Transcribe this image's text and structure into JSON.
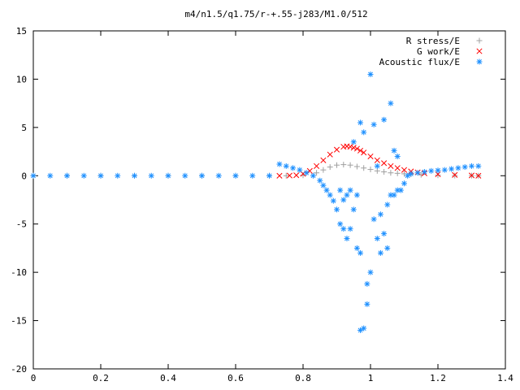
{
  "chart_data": {
    "type": "scatter",
    "title": "m4/n1.5/q1.75/r-+.55-j283/M1.0/512",
    "xlabel": "",
    "ylabel": "",
    "xlim": [
      0,
      1.4
    ],
    "ylim": [
      -20,
      15
    ],
    "x_ticks": [
      "0",
      "0.2",
      "0.4",
      "0.6",
      "0.8",
      "1",
      "1.2",
      "1.4"
    ],
    "y_ticks": [
      "15",
      "10",
      "5",
      "0",
      "-5",
      "-10",
      "-15",
      "-20"
    ],
    "grid": false,
    "legend_position": "top-right",
    "series": [
      {
        "name": "R stress/E",
        "marker": "+",
        "color": "#a0a0a0",
        "x": [
          0.0,
          0.1,
          0.2,
          0.3,
          0.4,
          0.5,
          0.6,
          0.7,
          0.75,
          0.8,
          0.84,
          0.86,
          0.88,
          0.9,
          0.92,
          0.94,
          0.96,
          0.98,
          1.0,
          1.02,
          1.04,
          1.06,
          1.08,
          1.1,
          1.12,
          1.15,
          1.2,
          1.25,
          1.3,
          1.32
        ],
        "y": [
          0.0,
          0.0,
          0.0,
          0.0,
          0.0,
          0.0,
          0.0,
          0.0,
          0.0,
          0.05,
          0.3,
          0.6,
          0.9,
          1.1,
          1.15,
          1.1,
          0.95,
          0.8,
          0.65,
          0.5,
          0.4,
          0.3,
          0.25,
          0.2,
          0.15,
          0.1,
          0.05,
          0.02,
          0.01,
          0.0
        ]
      },
      {
        "name": "G work/E",
        "marker": "x",
        "color": "#ff0000",
        "x": [
          0.73,
          0.76,
          0.78,
          0.8,
          0.82,
          0.84,
          0.86,
          0.88,
          0.9,
          0.92,
          0.93,
          0.94,
          0.95,
          0.96,
          0.97,
          0.98,
          1.0,
          1.02,
          1.04,
          1.06,
          1.08,
          1.1,
          1.12,
          1.14,
          1.16,
          1.2,
          1.25,
          1.3,
          1.32
        ],
        "y": [
          0.0,
          0.02,
          0.05,
          0.2,
          0.5,
          1.0,
          1.6,
          2.2,
          2.7,
          3.0,
          3.05,
          3.0,
          2.9,
          2.8,
          2.6,
          2.4,
          2.0,
          1.6,
          1.3,
          1.0,
          0.8,
          0.6,
          0.45,
          0.35,
          0.25,
          0.15,
          0.08,
          0.03,
          0.0
        ]
      },
      {
        "name": "Acoustic flux/E",
        "marker": "*",
        "color": "#1e90ff",
        "x": [
          0.0,
          0.05,
          0.1,
          0.15,
          0.2,
          0.25,
          0.3,
          0.35,
          0.4,
          0.45,
          0.5,
          0.55,
          0.6,
          0.65,
          0.7,
          0.73,
          0.75,
          0.77,
          0.79,
          0.81,
          0.83,
          0.85,
          0.86,
          0.87,
          0.88,
          0.89,
          0.9,
          0.91,
          0.91,
          0.92,
          0.92,
          0.93,
          0.93,
          0.94,
          0.94,
          0.95,
          0.95,
          0.96,
          0.96,
          0.97,
          0.97,
          0.97,
          0.98,
          0.98,
          0.99,
          0.99,
          1.0,
          1.0,
          1.01,
          1.01,
          1.02,
          1.02,
          1.03,
          1.03,
          1.04,
          1.04,
          1.05,
          1.05,
          1.06,
          1.06,
          1.07,
          1.07,
          1.08,
          1.08,
          1.09,
          1.1,
          1.11,
          1.12,
          1.14,
          1.16,
          1.18,
          1.2,
          1.22,
          1.24,
          1.26,
          1.28,
          1.3,
          1.32
        ],
        "y": [
          0.0,
          0.0,
          0.0,
          0.0,
          0.0,
          0.0,
          0.0,
          0.0,
          0.0,
          0.0,
          0.0,
          0.0,
          0.0,
          0.0,
          0.0,
          1.2,
          1.0,
          0.8,
          0.6,
          0.3,
          0.0,
          -0.5,
          -1.0,
          -1.5,
          -2.0,
          -2.6,
          -3.5,
          -5.0,
          -1.5,
          -5.5,
          -2.5,
          -6.5,
          -2.0,
          -5.5,
          -1.5,
          -3.5,
          3.5,
          -7.5,
          -2.0,
          -16.0,
          5.5,
          -8.0,
          -15.8,
          4.5,
          -11.2,
          -13.3,
          -10.0,
          10.5,
          5.3,
          -4.5,
          1.0,
          -6.5,
          -4.0,
          -8.0,
          5.8,
          -6.0,
          -3.0,
          -7.5,
          7.5,
          -2.0,
          2.6,
          -2.0,
          2.0,
          -1.5,
          -1.5,
          -0.8,
          0.0,
          0.2,
          0.3,
          0.4,
          0.5,
          0.55,
          0.6,
          0.7,
          0.8,
          0.9,
          1.0,
          1.0
        ]
      }
    ]
  }
}
